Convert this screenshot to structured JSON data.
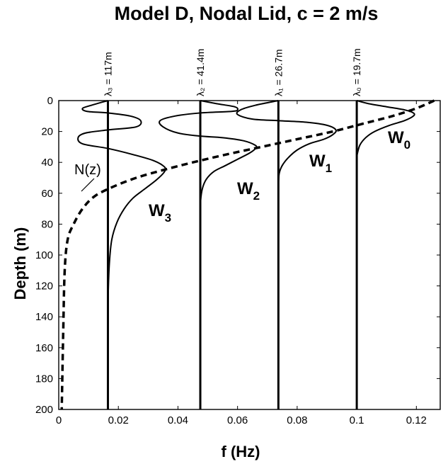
{
  "chart_data": {
    "type": "line",
    "title": "Model D, Nodal Lid, c = 2 m/s",
    "xlabel": "f (Hz)",
    "ylabel": "Depth (m)",
    "xlim": [
      0,
      0.128
    ],
    "ylim": [
      200,
      0
    ],
    "y_inverted": true,
    "xticks": [
      0,
      0.02,
      0.04,
      0.06,
      0.08,
      0.1,
      0.12
    ],
    "xtick_labels": [
      "0",
      "0.02",
      "0.04",
      "0.06",
      "0.08",
      "0.1",
      "0.12"
    ],
    "yticks": [
      0,
      20,
      40,
      60,
      80,
      100,
      120,
      140,
      160,
      180,
      200
    ],
    "ytick_labels": [
      "0",
      "20",
      "40",
      "60",
      "80",
      "100",
      "120",
      "140",
      "160",
      "180",
      "200"
    ],
    "grid": false,
    "series": [
      {
        "name": "N(z)",
        "label": "N(z)",
        "style": "dashed",
        "x": [
          0.126,
          0.12,
          0.112,
          0.102,
          0.092,
          0.08,
          0.068,
          0.056,
          0.045,
          0.035,
          0.026,
          0.018,
          0.012,
          0.008,
          0.005,
          0.003,
          0.002,
          0.0015,
          0.001
        ],
        "y": [
          0,
          5,
          10,
          15,
          20,
          25,
          30,
          35,
          40,
          45,
          50,
          56,
          62,
          70,
          80,
          90,
          110,
          150,
          200
        ]
      },
      {
        "name": "W0",
        "label_base": "W",
        "label_sub": "0",
        "baseline_f": 0.1,
        "lambda_label": "λ₀ = 19.7m",
        "x": [
          0.1,
          0.104,
          0.11,
          0.116,
          0.119,
          0.119,
          0.116,
          0.111,
          0.106,
          0.103,
          0.101,
          0.1
        ],
        "y": [
          0,
          2,
          4,
          6,
          8,
          10,
          13,
          16,
          20,
          24,
          29,
          36
        ]
      },
      {
        "name": "W1",
        "label_base": "W",
        "label_sub": "1",
        "baseline_f": 0.0737,
        "lambda_label": "λ₁ = 26.7m",
        "x": [
          0.0737,
          0.066,
          0.061,
          0.06,
          0.065,
          0.0737,
          0.083,
          0.09,
          0.093,
          0.092,
          0.089,
          0.084,
          0.08,
          0.077,
          0.075,
          0.074,
          0.0737
        ],
        "y": [
          0,
          3,
          6,
          9,
          12,
          13,
          14,
          16,
          19,
          22,
          25,
          28,
          32,
          37,
          42,
          47,
          54
        ]
      },
      {
        "name": "W2",
        "label_base": "W",
        "label_sub": "2",
        "baseline_f": 0.0475,
        "lambda_label": "λ₂ = 41.4m",
        "x": [
          0.0475,
          0.053,
          0.059,
          0.06,
          0.058,
          0.0475,
          0.039,
          0.034,
          0.035,
          0.04,
          0.0475,
          0.055,
          0.062,
          0.066,
          0.066,
          0.064,
          0.06,
          0.056,
          0.052,
          0.0495,
          0.0482,
          0.0476,
          0.0475
        ],
        "y": [
          0,
          2,
          4,
          6,
          7,
          8,
          10,
          13,
          17,
          21,
          23,
          24,
          26,
          29,
          31,
          34,
          38,
          42,
          46,
          51,
          57,
          65,
          75
        ]
      },
      {
        "name": "W3",
        "label_base": "W",
        "label_sub": "3",
        "baseline_f": 0.0165,
        "lambda_label": "λ₃ = 117m",
        "x": [
          0.0165,
          0.011,
          0.008,
          0.0095,
          0.0165,
          0.024,
          0.0275,
          0.026,
          0.0165,
          0.009,
          0.0065,
          0.008,
          0.0165,
          0.025,
          0.032,
          0.0355,
          0.0355,
          0.033,
          0.029,
          0.025,
          0.022,
          0.0195,
          0.0178,
          0.017,
          0.0166,
          0.0165
        ],
        "y": [
          0,
          3,
          5,
          7,
          8,
          10,
          13,
          17,
          19,
          21,
          24,
          28,
          31,
          35,
          39,
          43,
          46,
          51,
          57,
          63,
          70,
          79,
          90,
          105,
          125,
          147
        ]
      }
    ]
  },
  "annotations": {
    "nz_label": "N(z)"
  }
}
